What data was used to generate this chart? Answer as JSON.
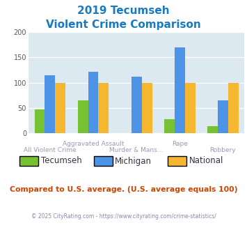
{
  "title_line1": "2019 Tecumseh",
  "title_line2": "Violent Crime Comparison",
  "title_color": "#1a7abf",
  "categories": [
    "All Violent Crime",
    "Aggravated Assault",
    "Murder & Mans...",
    "Rape",
    "Robbery"
  ],
  "upper_labels": [
    1,
    3
  ],
  "lower_labels": [
    0,
    2,
    4
  ],
  "series": {
    "Tecumseh": [
      48,
      65,
      0,
      28,
      15
    ],
    "Michigan": [
      115,
      122,
      112,
      170,
      65
    ],
    "National": [
      100,
      100,
      100,
      100,
      100
    ]
  },
  "colors": {
    "Tecumseh": "#77c232",
    "Michigan": "#4d94e8",
    "National": "#f5b630"
  },
  "ylim": [
    0,
    200
  ],
  "yticks": [
    0,
    50,
    100,
    150,
    200
  ],
  "bg_color": "#dde9f0",
  "tick_label_color": "#9999bb",
  "footer_text": "Compared to U.S. average. (U.S. average equals 100)",
  "footer_color": "#cc4400",
  "copyright_text": "© 2025 CityRating.com - https://www.cityrating.com/crime-statistics/",
  "copyright_color": "#8888aa",
  "legend_label_color": "#333344"
}
